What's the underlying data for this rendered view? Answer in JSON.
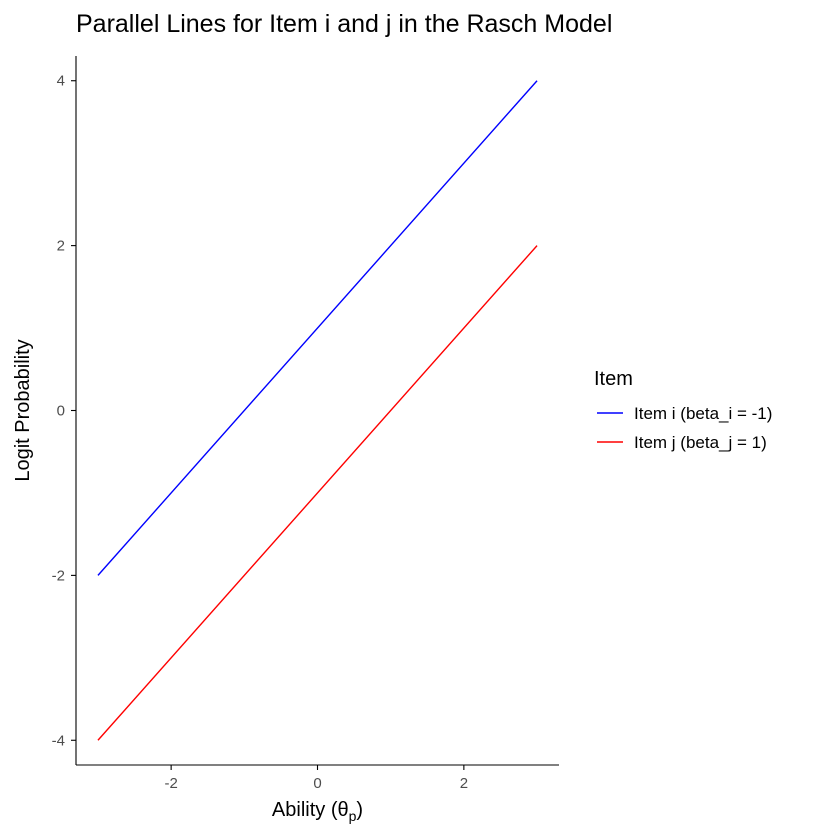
{
  "chart_data": {
    "type": "line",
    "title": "Parallel Lines for Item i and j in the Rasch Model",
    "xlabel": {
      "main": "Ability (θ",
      "sub": "p",
      "end": ")"
    },
    "ylabel": "Logit Probability",
    "xlim": [
      -3.3,
      3.3
    ],
    "ylim": [
      -4.3,
      4.3
    ],
    "x_ticks": [
      -2,
      0,
      2
    ],
    "y_ticks": [
      -4,
      -2,
      0,
      2,
      4
    ],
    "grid": false,
    "legend": {
      "title": "Item",
      "position": "right"
    },
    "series": [
      {
        "name": "Item i (beta_i = -1)",
        "color": "#0000ff",
        "x": [
          -3,
          3
        ],
        "y": [
          -2,
          4
        ]
      },
      {
        "name": "Item j (beta_j = 1)",
        "color": "#ff0000",
        "x": [
          -3,
          3
        ],
        "y": [
          -4,
          2
        ]
      }
    ]
  }
}
